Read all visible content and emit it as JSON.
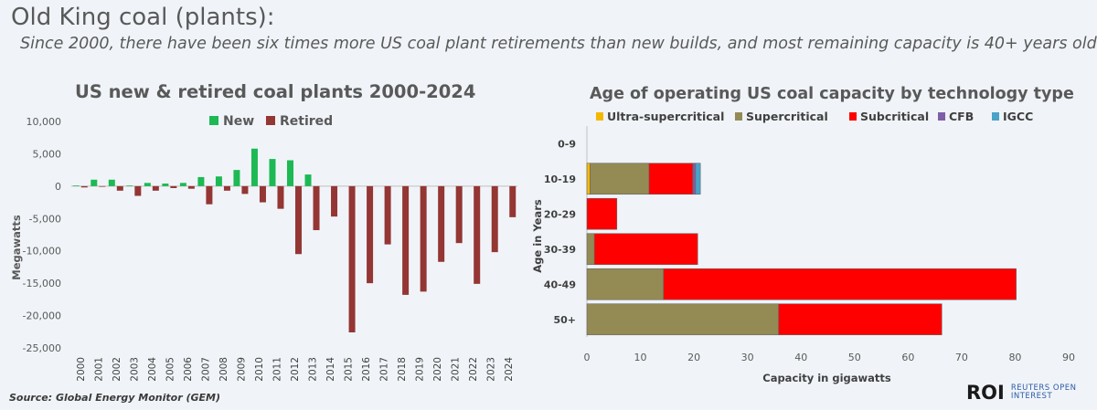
{
  "header": {
    "title": "Old King coal (plants):",
    "subtitle": "Since 2000, there have been six times more US coal plant retirements than new builds, and most remaining capacity is 40+ years old"
  },
  "footer": {
    "source": "Source: Global Energy Monitor (GEM)",
    "logo_mark": "ROI",
    "logo_line1": "REUTERS OPEN",
    "logo_line2": "INTEREST"
  },
  "colors": {
    "new": "#1db954",
    "retired": "#943634",
    "ultra_supercritical": "#f5b800",
    "supercritical": "#948a54",
    "subcritical": "#ff0000",
    "cfb": "#7f5fa8",
    "igcc": "#4aa3c8"
  },
  "chart_data": [
    {
      "type": "bar",
      "title": "US new & retired coal plants 2000-2024",
      "xlabel": "",
      "ylabel": "Megawatts",
      "ylim": [
        -25000,
        10000
      ],
      "yticks": [
        "10,000",
        "5,000",
        "0",
        "-5,000",
        "-10,000",
        "-15,000",
        "-20,000",
        "-25,000"
      ],
      "legend_position": "top",
      "categories": [
        "2000",
        "2001",
        "2002",
        "2003",
        "2004",
        "2005",
        "2006",
        "2007",
        "2008",
        "2009",
        "2010",
        "2011",
        "2012",
        "2013",
        "2014",
        "2015",
        "2016",
        "2017",
        "2018",
        "2019",
        "2020",
        "2021",
        "2022",
        "2023",
        "2024"
      ],
      "series": [
        {
          "name": "New",
          "values": [
            100,
            1000,
            1000,
            100,
            500,
            400,
            500,
            1400,
            1500,
            2500,
            5800,
            4200,
            4000,
            1800,
            0,
            0,
            0,
            0,
            0,
            0,
            0,
            0,
            0,
            0,
            0
          ]
        },
        {
          "name": "Retired",
          "values": [
            -200,
            -100,
            -700,
            -1500,
            -700,
            -300,
            -400,
            -2800,
            -700,
            -1200,
            -2500,
            -3500,
            -10500,
            -6800,
            -4700,
            -22600,
            -15000,
            -9000,
            -16800,
            -16300,
            -11700,
            -8800,
            -15100,
            -10200,
            -4800
          ]
        }
      ]
    },
    {
      "type": "bar",
      "orientation": "horizontal",
      "stacked": true,
      "title": "Age of operating US coal capacity by technology type",
      "xlabel": "Capacity in gigawatts",
      "ylabel": "Age in Years",
      "xlim": [
        0,
        90
      ],
      "xticks": [
        "0",
        "10",
        "20",
        "30",
        "40",
        "50",
        "60",
        "70",
        "80",
        "90"
      ],
      "legend_position": "top",
      "categories": [
        "0-9",
        "10-19",
        "20-29",
        "30-39",
        "40-49",
        "50+"
      ],
      "series": [
        {
          "name": "Ultra-supercritical",
          "values": [
            0,
            0.6,
            0,
            0,
            0,
            0
          ]
        },
        {
          "name": "Supercritical",
          "values": [
            0,
            11.0,
            0,
            1.4,
            14.3,
            35.8
          ]
        },
        {
          "name": "Subcritical",
          "values": [
            0,
            8.2,
            5.6,
            19.3,
            65.9,
            30.5
          ]
        },
        {
          "name": "CFB",
          "values": [
            0,
            0.5,
            0,
            0,
            0,
            0
          ]
        },
        {
          "name": "IGCC",
          "values": [
            0,
            0.9,
            0,
            0,
            0,
            0
          ]
        }
      ]
    }
  ]
}
